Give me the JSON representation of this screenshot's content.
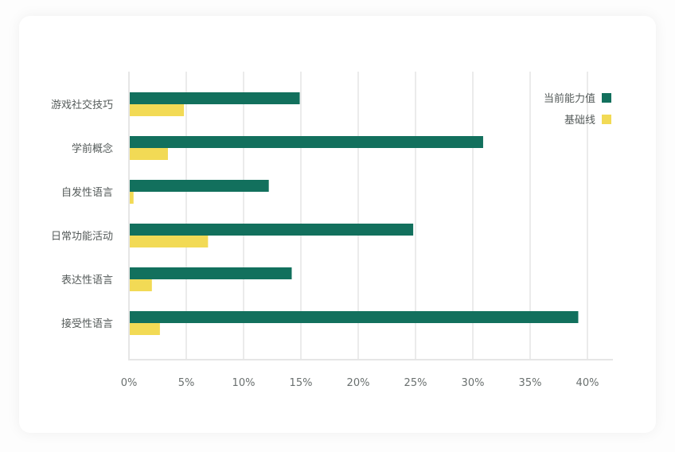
{
  "chart_data": {
    "type": "bar",
    "orientation": "horizontal",
    "categories": [
      "游戏社交技巧",
      "学前概念",
      "自发性语言",
      "日常功能活动",
      "表达性语言",
      "接受性语言"
    ],
    "series": [
      {
        "name": "当前能力值",
        "color": "#12705d",
        "values": [
          14.9,
          30.9,
          12.2,
          24.8,
          14.2,
          39.2
        ]
      },
      {
        "name": "基础线",
        "color": "#f2da55",
        "values": [
          4.8,
          3.4,
          0.4,
          6.9,
          2.0,
          2.7
        ]
      }
    ],
    "x_ticks": [
      "0%",
      "5%",
      "10%",
      "15%",
      "20%",
      "25%",
      "30%",
      "35%",
      "40%"
    ],
    "xlim": [
      0,
      40
    ],
    "grid": true,
    "legend_position": "top-right"
  }
}
